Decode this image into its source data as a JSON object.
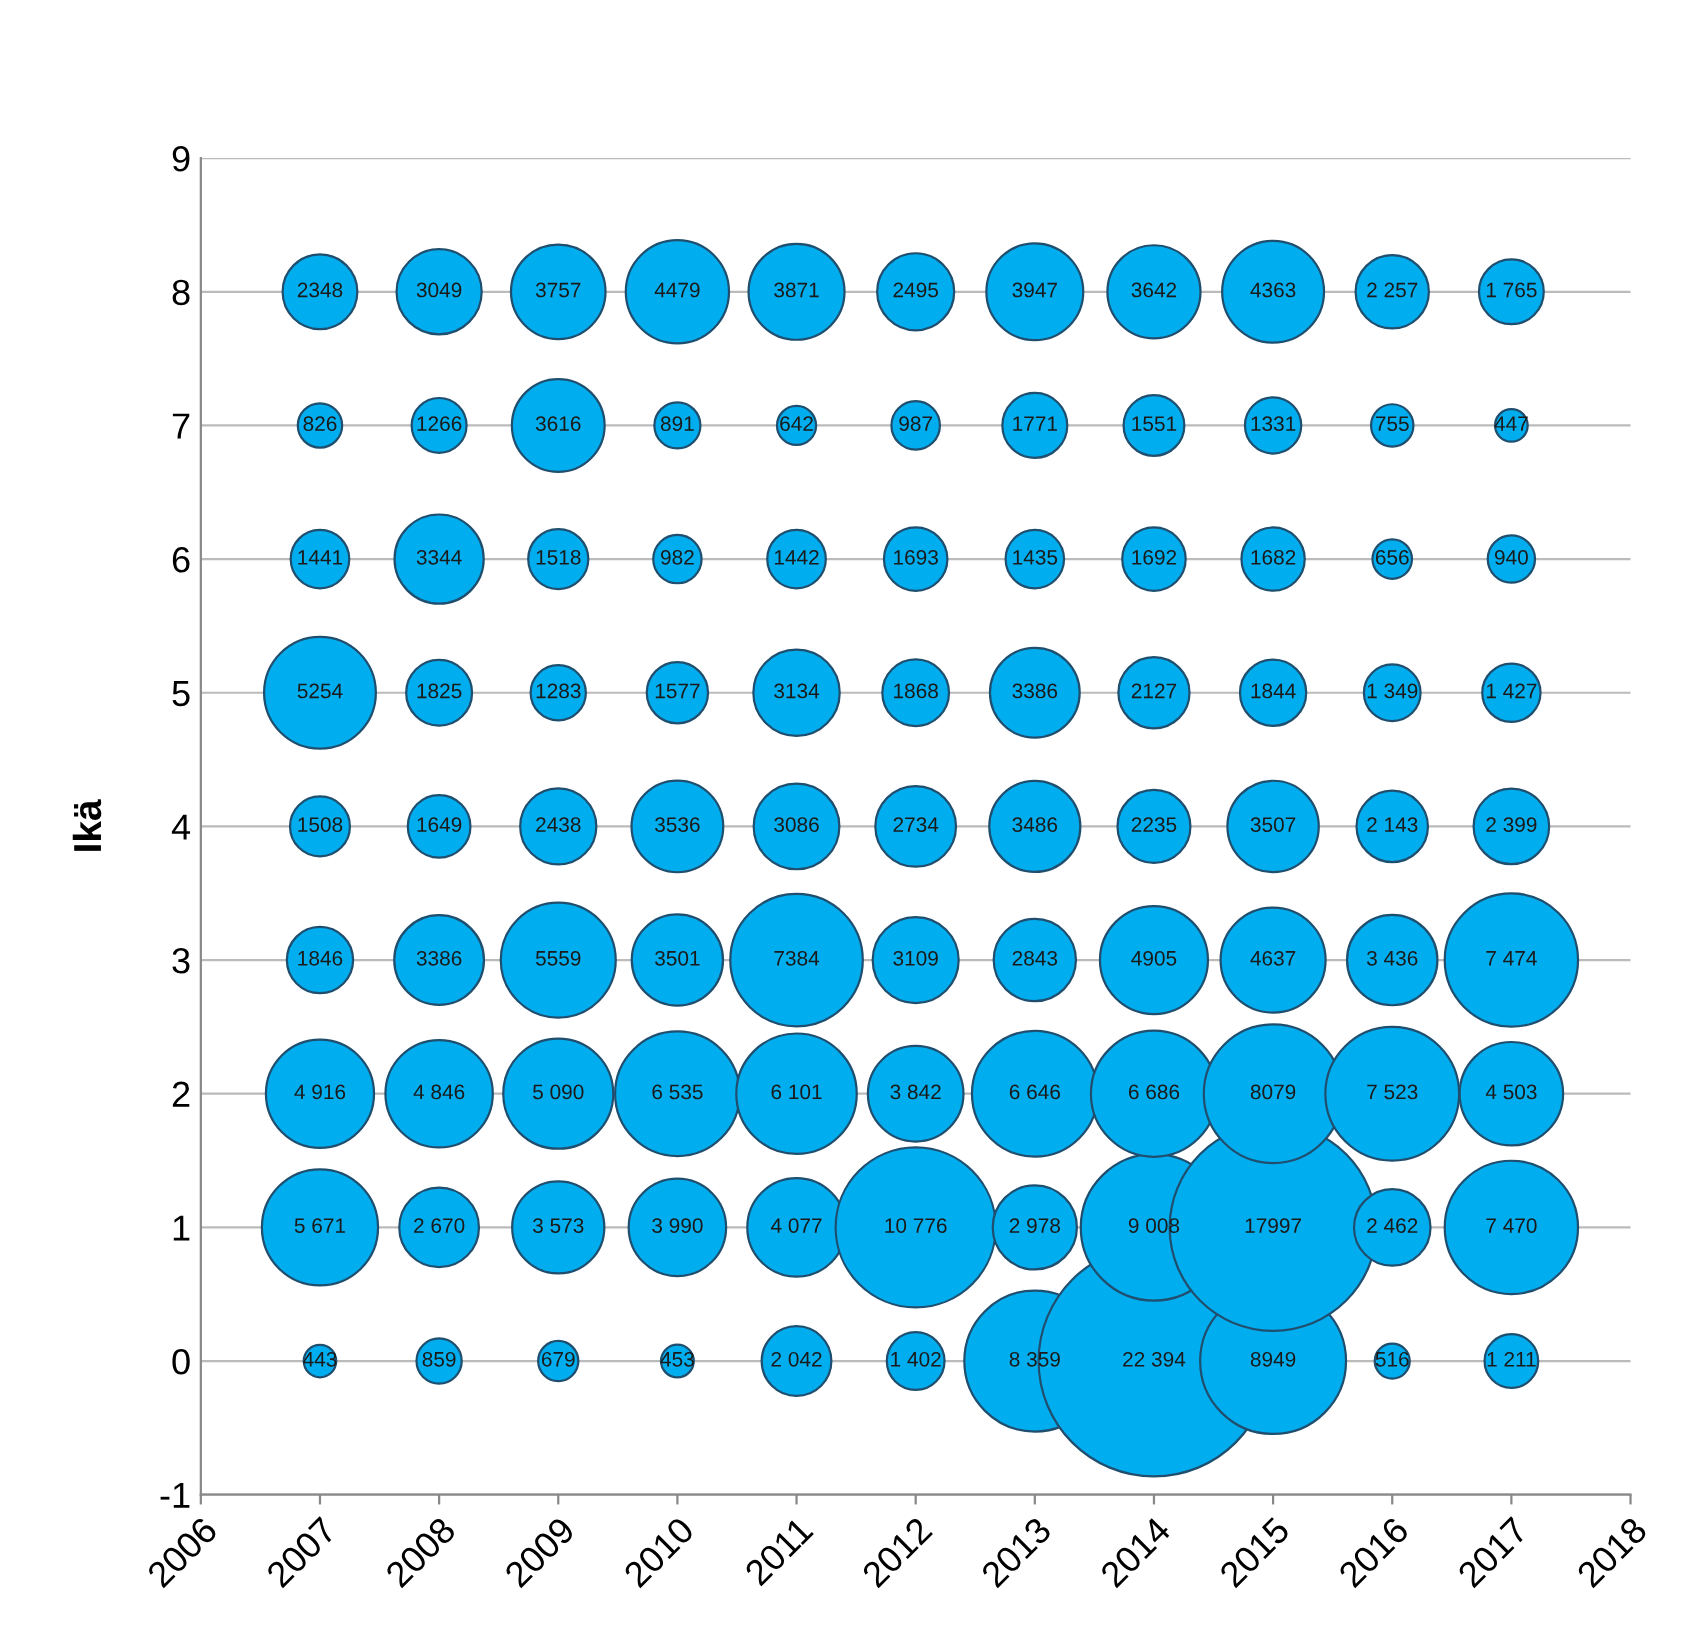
{
  "chart_data": {
    "type": "bubble",
    "ylabel": "Ikä",
    "x": [
      2007,
      2008,
      2009,
      2010,
      2011,
      2012,
      2013,
      2014,
      2015,
      2016,
      2017
    ],
    "xlim": [
      2006,
      2018
    ],
    "xticks": [
      2006,
      2007,
      2008,
      2009,
      2010,
      2011,
      2012,
      2013,
      2014,
      2015,
      2016,
      2017,
      2018
    ],
    "ylim": [
      -1,
      9
    ],
    "yticks": [
      -1,
      0,
      1,
      2,
      3,
      4,
      5,
      6,
      7,
      8,
      9
    ],
    "grid": "y",
    "legend": false,
    "series": [
      {
        "color": "#00aeef",
        "values": [
          0,
          0,
          0,
          0,
          0,
          0,
          0,
          0,
          0,
          0,
          0
        ],
        "sizes": [
          443,
          859,
          679,
          453,
          2042,
          1402,
          8359,
          22394,
          8949,
          516,
          1211
        ],
        "value_labels": [
          "443",
          "859",
          "679",
          "453",
          "2 042",
          "1 402",
          "8 359",
          "22 394",
          "8949",
          "516",
          "1 211"
        ]
      },
      {
        "color": "#00aeef",
        "values": [
          1,
          1,
          1,
          1,
          1,
          1,
          1,
          1,
          1,
          1,
          1
        ],
        "sizes": [
          5671,
          2670,
          3573,
          3990,
          4077,
          10776,
          2978,
          9008,
          17997,
          2462,
          7470
        ],
        "value_labels": [
          "5 671",
          "2 670",
          "3 573",
          "3 990",
          "4 077",
          "10 776",
          "2 978",
          "9 008",
          "17997",
          "2 462",
          "7 470"
        ]
      },
      {
        "color": "#00aeef",
        "values": [
          2,
          2,
          2,
          2,
          2,
          2,
          2,
          2,
          2,
          2,
          2
        ],
        "sizes": [
          4916,
          4846,
          5090,
          6535,
          6101,
          3842,
          6646,
          6686,
          8079,
          7523,
          4503
        ],
        "value_labels": [
          "4 916",
          "4 846",
          "5 090",
          "6 535",
          "6 101",
          "3 842",
          "6 646",
          "6 686",
          "8079",
          "7 523",
          "4 503"
        ]
      },
      {
        "color": "#00aeef",
        "values": [
          3,
          3,
          3,
          3,
          3,
          3,
          3,
          3,
          3,
          3,
          3
        ],
        "sizes": [
          1846,
          3386,
          5559,
          3501,
          7384,
          3109,
          2843,
          4905,
          4637,
          3436,
          7474
        ],
        "value_labels": [
          "1846",
          "3386",
          "5559",
          "3501",
          "7384",
          "3109",
          "2843",
          "4905",
          "4637",
          "3 436",
          "7 474"
        ]
      },
      {
        "color": "#00aeef",
        "values": [
          4,
          4,
          4,
          4,
          4,
          4,
          4,
          4,
          4,
          4,
          4
        ],
        "sizes": [
          1508,
          1649,
          2438,
          3536,
          3086,
          2734,
          3486,
          2235,
          3507,
          2143,
          2399
        ],
        "value_labels": [
          "1508",
          "1649",
          "2438",
          "3536",
          "3086",
          "2734",
          "3486",
          "2235",
          "3507",
          "2 143",
          "2 399"
        ]
      },
      {
        "color": "#00aeef",
        "values": [
          5,
          5,
          5,
          5,
          5,
          5,
          5,
          5,
          5,
          5,
          5
        ],
        "sizes": [
          5254,
          1825,
          1283,
          1577,
          3134,
          1868,
          3386,
          2127,
          1844,
          1349,
          1427
        ],
        "value_labels": [
          "5254",
          "1825",
          "1283",
          "1577",
          "3134",
          "1868",
          "3386",
          "2127",
          "1844",
          "1 349",
          "1 427"
        ]
      },
      {
        "color": "#00aeef",
        "values": [
          6,
          6,
          6,
          6,
          6,
          6,
          6,
          6,
          6,
          6,
          6
        ],
        "sizes": [
          1441,
          3344,
          1518,
          982,
          1442,
          1693,
          1435,
          1692,
          1682,
          656,
          940
        ],
        "value_labels": [
          "1441",
          "3344",
          "1518",
          "982",
          "1442",
          "1693",
          "1435",
          "1692",
          "1682",
          "656",
          "940"
        ]
      },
      {
        "color": "#00aeef",
        "values": [
          7,
          7,
          7,
          7,
          7,
          7,
          7,
          7,
          7,
          7,
          7
        ],
        "sizes": [
          826,
          1266,
          3616,
          891,
          642,
          987,
          1771,
          1551,
          1331,
          755,
          447
        ],
        "value_labels": [
          "826",
          "1266",
          "3616",
          "891",
          "642",
          "987",
          "1771",
          "1551",
          "1331",
          "755",
          "447"
        ]
      },
      {
        "color": "#00aeef",
        "values": [
          8,
          8,
          8,
          8,
          8,
          8,
          8,
          8,
          8,
          8,
          8
        ],
        "sizes": [
          2348,
          3049,
          3757,
          4479,
          3871,
          2495,
          3947,
          3642,
          4363,
          2257,
          1765
        ],
        "value_labels": [
          "2348",
          "3049",
          "3757",
          "4479",
          "3871",
          "2495",
          "3947",
          "3642",
          "4363",
          "2 257",
          "1 765"
        ]
      }
    ]
  }
}
